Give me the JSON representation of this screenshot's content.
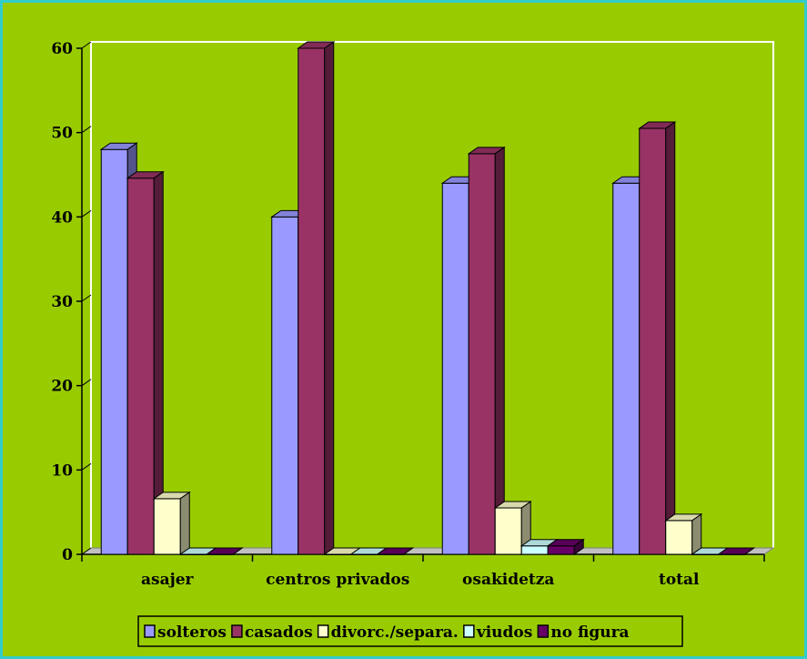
{
  "colors": {
    "background": "#99cc00",
    "border": "#33cccc",
    "gridline": "#ffffff",
    "axis": "#000000"
  },
  "chart_data": {
    "type": "bar",
    "title": "",
    "xlabel": "",
    "ylabel": "",
    "ylim": [
      0,
      60
    ],
    "yticks": [
      0,
      10,
      20,
      30,
      40,
      50,
      60
    ],
    "grid": "none",
    "legend_position": "bottom",
    "categories": [
      "asajer",
      "centros privados",
      "osakidetza",
      "total"
    ],
    "series": [
      {
        "name": "solteros",
        "color": "#9999ff",
        "values": [
          48,
          40,
          44,
          44
        ]
      },
      {
        "name": "casados",
        "color": "#993366",
        "values": [
          44.6,
          60,
          47.5,
          50.5
        ]
      },
      {
        "name": "divorc./separa.",
        "color": "#ffffcc",
        "values": [
          6.6,
          0,
          5.5,
          4
        ]
      },
      {
        "name": "viudos",
        "color": "#ccffff",
        "values": [
          0,
          0,
          1,
          0
        ]
      },
      {
        "name": "no figura",
        "color": "#660066",
        "values": [
          0,
          0,
          1,
          0
        ]
      }
    ]
  }
}
